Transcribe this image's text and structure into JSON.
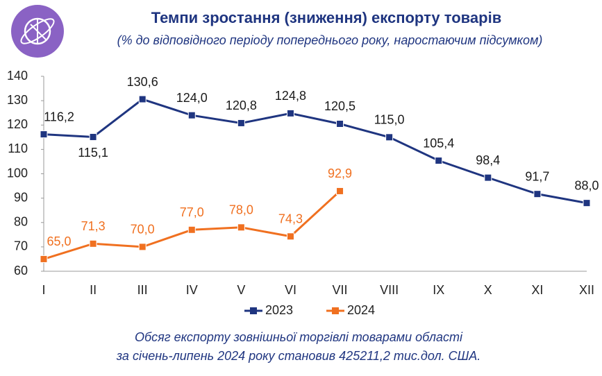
{
  "chart_data": {
    "type": "line",
    "title": "Темпи зростання (зниження) експорту товарів",
    "subtitle": "(% до відповідного періоду попереднього року, наростаючим підсумком)",
    "categories": [
      "I",
      "II",
      "III",
      "IV",
      "V",
      "VI",
      "VII",
      "VIII",
      "IX",
      "X",
      "XI",
      "XII"
    ],
    "series": [
      {
        "name": "2023",
        "color": "#1f3580",
        "values": [
          116.2,
          115.1,
          130.6,
          124.0,
          120.8,
          124.8,
          120.5,
          115.0,
          105.4,
          98.4,
          91.7,
          88.0
        ],
        "value_labels": [
          "116,2",
          "115,1",
          "130,6",
          "124,0",
          "120,8",
          "124,8",
          "120,5",
          "115,0",
          "105,4",
          "98,4",
          "91,7",
          "88,0"
        ]
      },
      {
        "name": "2024",
        "color": "#f07020",
        "values": [
          65.0,
          71.3,
          70.0,
          77.0,
          78.0,
          74.3,
          92.9,
          null,
          null,
          null,
          null,
          null
        ],
        "value_labels": [
          "65,0",
          "71,3",
          "70,0",
          "77,0",
          "78,0",
          "74,3",
          "92,9",
          null,
          null,
          null,
          null,
          null
        ]
      }
    ],
    "ylim": [
      60,
      140
    ],
    "yticks": [
      60,
      70,
      80,
      90,
      100,
      110,
      120,
      130,
      140
    ],
    "legend": "bottom",
    "footer": [
      "Обсяг експорту зовнішньої торгівлі товарами області",
      "за січень-липень 2024 року становив  425211,2 тис.дол. США."
    ]
  }
}
